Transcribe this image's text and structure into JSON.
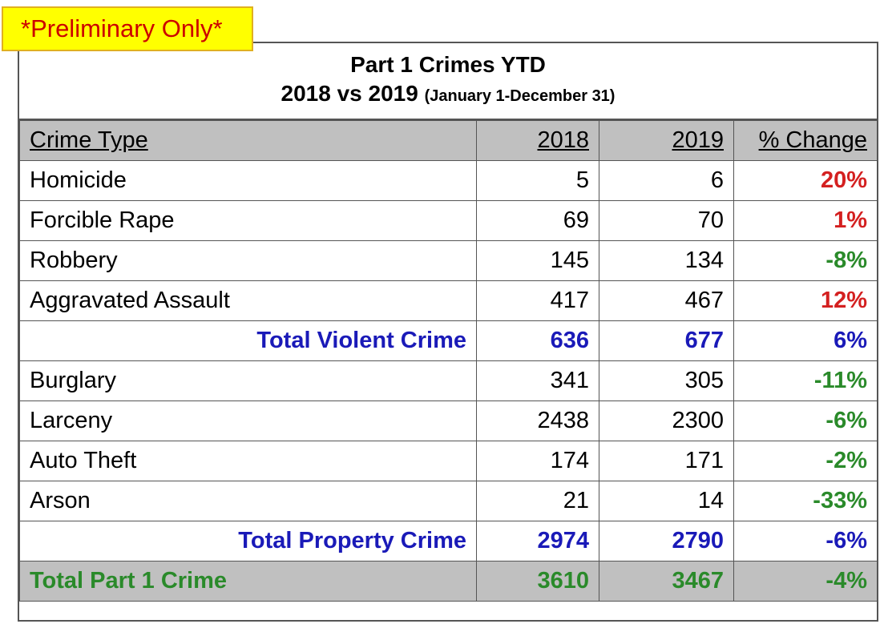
{
  "banner": "*Preliminary Only*",
  "title": {
    "line1": "Part 1 Crimes YTD",
    "line2": "2018 vs 2019",
    "range": "(January 1-December 31)"
  },
  "headers": [
    "Crime Type",
    "2018",
    "2019",
    "% Change"
  ],
  "rows": [
    {
      "type": "Homicide",
      "y2018": "5",
      "y2019": "6",
      "change": "20%",
      "kind": "up"
    },
    {
      "type": "Forcible Rape",
      "y2018": "69",
      "y2019": "70",
      "change": "1%",
      "kind": "up"
    },
    {
      "type": "Robbery",
      "y2018": "145",
      "y2019": "134",
      "change": "-8%",
      "kind": "down"
    },
    {
      "type": "Aggravated Assault",
      "y2018": "417",
      "y2019": "467",
      "change": "12%",
      "kind": "up"
    },
    {
      "type": "Total Violent Crime",
      "y2018": "636",
      "y2019": "677",
      "change": "6%",
      "kind": "total"
    },
    {
      "type": "Burglary",
      "y2018": "341",
      "y2019": "305",
      "change": "-11%",
      "kind": "down"
    },
    {
      "type": "Larceny",
      "y2018": "2438",
      "y2019": "2300",
      "change": "-6%",
      "kind": "down"
    },
    {
      "type": "Auto Theft",
      "y2018": "174",
      "y2019": "171",
      "change": "-2%",
      "kind": "down"
    },
    {
      "type": "Arson",
      "y2018": "21",
      "y2019": "14",
      "change": "-33%",
      "kind": "down"
    },
    {
      "type": "Total Property Crime",
      "y2018": "2974",
      "y2019": "2790",
      "change": "-6%",
      "kind": "total"
    },
    {
      "type": "Total Part 1 Crime",
      "y2018": "3610",
      "y2019": "3467",
      "change": "-4%",
      "kind": "grand"
    }
  ],
  "colors": {
    "increase": "#d42020",
    "decrease": "#2a8a2a",
    "total": "#1a1ab8",
    "header_bg": "#c0c0c0",
    "banner_bg": "#ffff00",
    "banner_text": "#cc0000"
  }
}
